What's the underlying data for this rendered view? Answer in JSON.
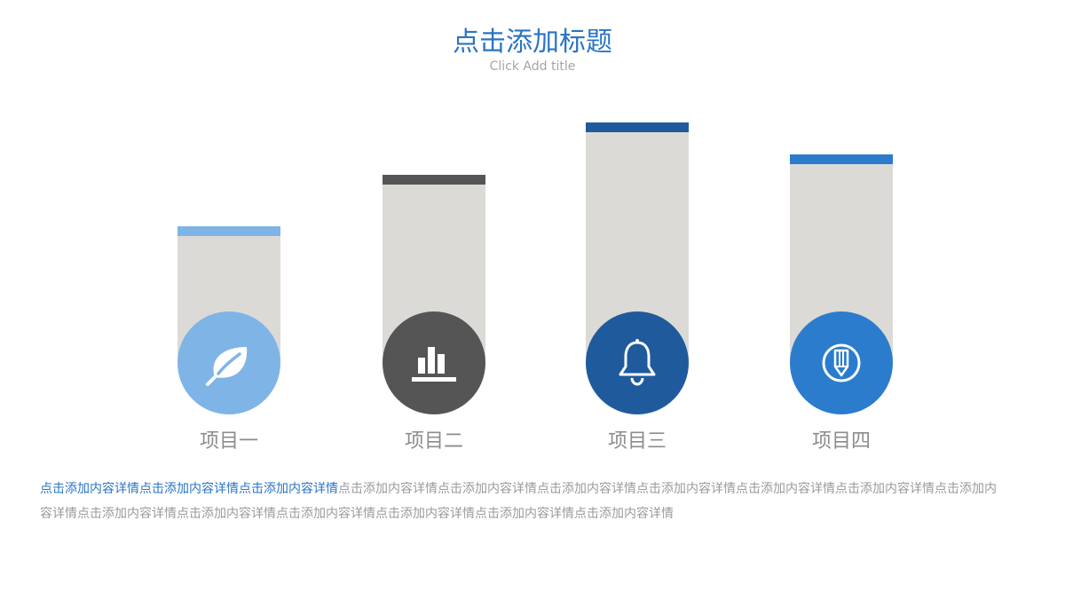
{
  "header": {
    "title": "点击添加标题",
    "subtitle": "Click Add title",
    "title_color": "#2b74c4"
  },
  "items": [
    {
      "label": "项目一",
      "value": 0.47,
      "cap_color": "#7fb4e6",
      "circle_color": "#7fb4e6",
      "icon": "leaf-icon"
    },
    {
      "label": "项目二",
      "value": 0.65,
      "cap_color": "#555555",
      "circle_color": "#555555",
      "icon": "bar-chart-icon"
    },
    {
      "label": "项目三",
      "value": 0.83,
      "cap_color": "#1f5b9c",
      "circle_color": "#1f5b9c",
      "icon": "bell-icon"
    },
    {
      "label": "项目四",
      "value": 0.72,
      "cap_color": "#2b7ccc",
      "circle_color": "#2b7ccc",
      "icon": "pencil-icon"
    }
  ],
  "description": {
    "highlight": "点击添加内容详情点击添加内容详情点击添加内容详情",
    "body": "点击添加内容详情点击添加内容详情点击添加内容详情点击添加内容详情点击添加内容详情点击添加内容详情点击添加内容详情点击添加内容详情点击添加内容详情点击添加内容详情点击添加内容详情点击添加内容详情点击添加内容详情"
  }
}
